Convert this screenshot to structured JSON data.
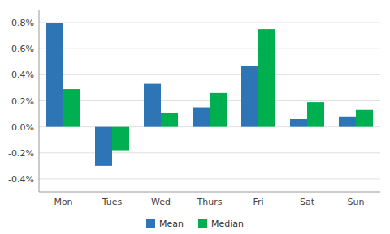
{
  "chart_data": {
    "type": "bar",
    "categories": [
      "Mon",
      "Tues",
      "Wed",
      "Thurs",
      "Fri",
      "Sat",
      "Sun"
    ],
    "series": [
      {
        "name": "Mean",
        "color": "#2E75B6",
        "values": [
          0.008,
          -0.003,
          0.0033,
          0.0015,
          0.0047,
          0.0006,
          0.0008
        ]
      },
      {
        "name": "Median",
        "color": "#00B050",
        "values": [
          0.0029,
          -0.0018,
          0.0011,
          0.0026,
          0.0075,
          0.0019,
          0.0013
        ]
      }
    ],
    "ylim": [
      -0.005,
      0.009
    ],
    "yticks": [
      {
        "value": -0.004,
        "label": "-0.4%"
      },
      {
        "value": -0.002,
        "label": "-0.2%"
      },
      {
        "value": 0.0,
        "label": "0.0%"
      },
      {
        "value": 0.002,
        "label": "0.2%"
      },
      {
        "value": 0.004,
        "label": "0.4%"
      },
      {
        "value": 0.006,
        "label": "0.6%"
      },
      {
        "value": 0.008,
        "label": "0.8%"
      }
    ],
    "grid": true,
    "legend": "bottom"
  }
}
